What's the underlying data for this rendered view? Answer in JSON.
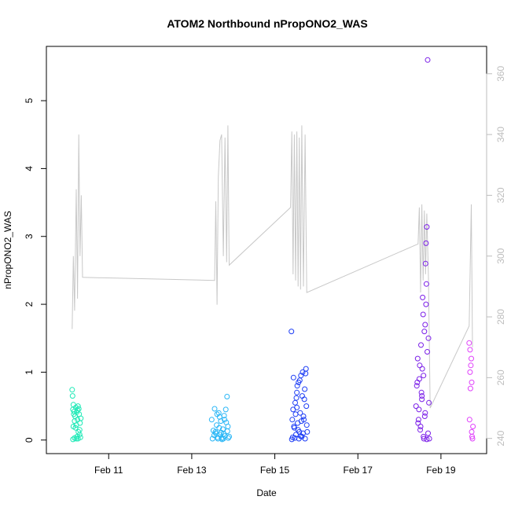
{
  "chart_data": {
    "type": "scatter",
    "title": "ATOM2 Northbound nPropONO2_WAS",
    "xlabel": "Date",
    "ylabel": "nPropONO2_WAS",
    "x_ticks": [
      "Feb 11",
      "Feb 13",
      "Feb 15",
      "Feb 17",
      "Feb 19"
    ],
    "x_tick_days": [
      11,
      13,
      15,
      17,
      19
    ],
    "xlim_days": [
      9.5,
      20.1
    ],
    "ylim": [
      -0.2,
      5.8
    ],
    "y_ticks": [
      0,
      1,
      2,
      3,
      4,
      5
    ],
    "right_axis": {
      "ylim": [
        235,
        369
      ],
      "ticks": [
        240,
        260,
        280,
        300,
        320,
        340,
        360
      ],
      "color": "#bdbdbd"
    },
    "background_line": {
      "color": "#c8c8c8",
      "points": [
        [
          10.12,
          276
        ],
        [
          10.15,
          300
        ],
        [
          10.18,
          282
        ],
        [
          10.22,
          322
        ],
        [
          10.25,
          286
        ],
        [
          10.28,
          340
        ],
        [
          10.31,
          300
        ],
        [
          10.34,
          320
        ],
        [
          10.37,
          293
        ],
        [
          13.55,
          292
        ],
        [
          13.58,
          318
        ],
        [
          13.61,
          284
        ],
        [
          13.64,
          326
        ],
        [
          13.68,
          338
        ],
        [
          13.72,
          340
        ],
        [
          13.76,
          300
        ],
        [
          13.8,
          339
        ],
        [
          13.84,
          298
        ],
        [
          13.87,
          343
        ],
        [
          13.9,
          297
        ],
        [
          15.38,
          316
        ],
        [
          15.41,
          341
        ],
        [
          15.44,
          294
        ],
        [
          15.47,
          340
        ],
        [
          15.5,
          292
        ],
        [
          15.53,
          341
        ],
        [
          15.56,
          290
        ],
        [
          15.59,
          339
        ],
        [
          15.62,
          289
        ],
        [
          15.65,
          343
        ],
        [
          15.69,
          290
        ],
        [
          15.73,
          340
        ],
        [
          15.77,
          288
        ],
        [
          18.45,
          304
        ],
        [
          18.48,
          316
        ],
        [
          18.51,
          288
        ],
        [
          18.54,
          317
        ],
        [
          18.57,
          292
        ],
        [
          18.6,
          315
        ],
        [
          18.63,
          294
        ],
        [
          18.66,
          314
        ],
        [
          18.7,
          293
        ],
        [
          18.74,
          250
        ],
        [
          19.68,
          277
        ],
        [
          19.73,
          317
        ],
        [
          19.76,
          270
        ]
      ]
    },
    "series": [
      {
        "color": "#1de9b6",
        "x": [
          10.12,
          10.13,
          10.14,
          10.15,
          10.16,
          10.17,
          10.18,
          10.19,
          10.2,
          10.21,
          10.22,
          10.23,
          10.24,
          10.25,
          10.26,
          10.27,
          10.28,
          10.29,
          10.3,
          10.31,
          10.32,
          10.33,
          10.14,
          10.18,
          10.22,
          10.26,
          10.3,
          10.15,
          10.25
        ],
        "y": [
          0.74,
          0.65,
          0.45,
          0.52,
          0.38,
          0.42,
          0.28,
          0.35,
          0.18,
          0.48,
          0.22,
          0.41,
          0.05,
          0.3,
          0.02,
          0.12,
          0.46,
          0.38,
          0.08,
          0.25,
          0.04,
          0.32,
          0.01,
          0.03,
          0.02,
          0.5,
          0.15,
          0.2,
          0.44
        ]
      },
      {
        "color": "#29b6f6",
        "x": [
          13.48,
          13.52,
          13.55,
          13.58,
          13.6,
          13.62,
          13.65,
          13.68,
          13.7,
          13.72,
          13.75,
          13.78,
          13.8,
          13.82,
          13.85,
          13.87,
          13.9,
          13.5,
          13.57,
          13.63,
          13.67,
          13.73,
          13.77,
          13.83,
          13.88,
          13.54,
          13.66,
          13.79,
          13.86,
          13.61,
          13.71,
          13.76
        ],
        "y": [
          0.3,
          0.14,
          0.46,
          0.1,
          0.22,
          0.04,
          0.4,
          0.08,
          0.28,
          0.03,
          0.16,
          0.36,
          0.06,
          0.45,
          0.64,
          0.2,
          0.05,
          0.02,
          0.12,
          0.02,
          0.34,
          0.01,
          0.09,
          0.26,
          0.03,
          0.07,
          0.18,
          0.3,
          0.13,
          0.38,
          0.11,
          0.02
        ]
      },
      {
        "color": "#1e3ef5",
        "x": [
          15.4,
          15.42,
          15.45,
          15.47,
          15.49,
          15.51,
          15.53,
          15.55,
          15.57,
          15.59,
          15.61,
          15.63,
          15.65,
          15.67,
          15.69,
          15.71,
          15.73,
          15.75,
          15.77,
          15.44,
          15.48,
          15.52,
          15.56,
          15.6,
          15.64,
          15.68,
          15.72,
          15.76,
          15.43,
          15.5,
          15.58,
          15.66,
          15.74,
          15.46,
          15.54,
          15.62,
          15.7,
          15.41,
          15.78,
          15.53
        ],
        "y": [
          1.6,
          0.3,
          0.92,
          0.18,
          0.55,
          0.08,
          0.7,
          0.25,
          0.85,
          0.12,
          0.4,
          0.95,
          0.05,
          1.0,
          0.35,
          0.6,
          0.02,
          1.05,
          0.22,
          0.45,
          0.03,
          0.62,
          0.15,
          0.88,
          0.28,
          0.1,
          0.75,
          0.5,
          0.04,
          0.38,
          0.02,
          0.65,
          0.98,
          0.2,
          0.8,
          0.06,
          0.3,
          0.01,
          0.12,
          0.48
        ]
      },
      {
        "color": "#7b1fe8",
        "x": [
          18.4,
          18.42,
          18.44,
          18.46,
          18.48,
          18.5,
          18.52,
          18.54,
          18.56,
          18.58,
          18.6,
          18.62,
          18.64,
          18.66,
          18.68,
          18.7,
          18.72,
          18.45,
          18.49,
          18.53,
          18.57,
          18.61,
          18.65,
          18.69,
          18.43,
          18.47,
          18.51,
          18.55,
          18.59,
          18.63,
          18.67,
          18.71,
          18.66,
          18.64,
          18.62,
          18.58,
          18.54
        ],
        "y": [
          0.5,
          0.8,
          1.2,
          0.3,
          0.9,
          0.15,
          1.4,
          0.6,
          2.1,
          0.05,
          1.6,
          0.4,
          2.9,
          3.14,
          5.6,
          1.5,
          0.02,
          0.25,
          1.1,
          0.7,
          1.85,
          0.35,
          2.3,
          0.1,
          0.85,
          0.45,
          0.2,
          1.05,
          0.02,
          2.6,
          1.3,
          0.55,
          0.01,
          2.0,
          1.7,
          0.95,
          0.65
        ]
      },
      {
        "color": "#e040fb",
        "x": [
          19.68,
          19.7,
          19.72,
          19.74,
          19.76,
          19.69,
          19.71,
          19.73,
          19.75,
          19.77,
          19.7,
          19.74
        ],
        "y": [
          1.43,
          1.33,
          1.1,
          0.85,
          0.02,
          0.3,
          0.76,
          1.2,
          0.05,
          0.2,
          1.0,
          0.12
        ]
      }
    ]
  }
}
